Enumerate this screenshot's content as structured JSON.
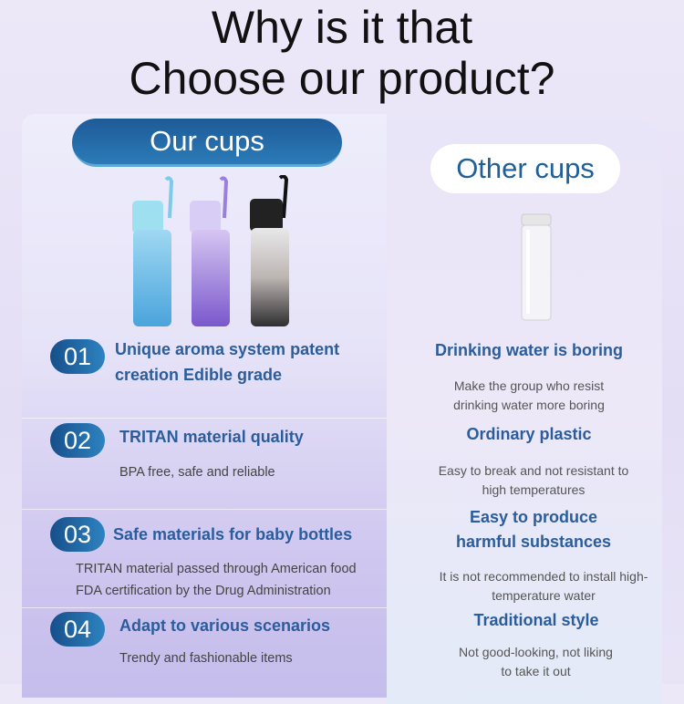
{
  "title": {
    "line1": "Why is it that",
    "line2": "Choose our product?"
  },
  "our": {
    "label": "Our cups",
    "items": [
      {
        "num": "01",
        "heading": "Unique aroma system patent creation Edible grade",
        "text": ""
      },
      {
        "num": "02",
        "heading": "TRITAN material quality",
        "text": "BPA free, safe and reliable"
      },
      {
        "num": "03",
        "heading": "Safe materials for baby bottles",
        "text": "TRITAN material passed through American food FDA certification by the Drug Administration"
      },
      {
        "num": "04",
        "heading": "Adapt to various scenarios",
        "text": "Trendy and fashionable items"
      }
    ]
  },
  "other": {
    "label": "Other cups",
    "items": [
      {
        "heading": "Drinking water is boring",
        "text": "Make the group who resist drinking water more boring"
      },
      {
        "heading": "Ordinary plastic",
        "text": "Easy to break and not resistant to high temperatures"
      },
      {
        "heading": "Easy to produce harmful substances",
        "text": "It is not recommended to install high-temperature water"
      },
      {
        "heading": "Traditional style",
        "text": "Not good-looking, not liking to take it out"
      }
    ]
  },
  "colors": {
    "accent": "#2b5d9c",
    "bottle_blue": "#6ab8e6",
    "bottle_purple": "#9a78d8",
    "bottle_black": "#3a3a3a"
  }
}
